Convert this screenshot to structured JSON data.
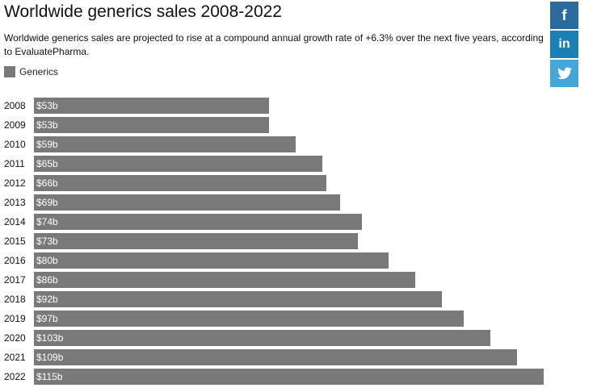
{
  "chart_data": {
    "type": "barh",
    "title": "Worldwide generics sales 2008-2022",
    "subtitle": "Worldwide generics sales are projected to rise at a compound annual growth rate of +6.3% over the next five years, according to EvaluatePharma.",
    "categories": [
      "2008",
      "2009",
      "2010",
      "2011",
      "2012",
      "2013",
      "2014",
      "2015",
      "2016",
      "2017",
      "2018",
      "2019",
      "2020",
      "2021",
      "2022"
    ],
    "series": [
      {
        "name": "Generics",
        "color": "#797979",
        "values": [
          53,
          53,
          59,
          65,
          66,
          69,
          74,
          73,
          80,
          86,
          92,
          97,
          103,
          109,
          115
        ],
        "value_labels": [
          "$53b",
          "$53b",
          "$59b",
          "$65b",
          "$66b",
          "$69b",
          "$74b",
          "$73b",
          "$80b",
          "$86b",
          "$92b",
          "$97b",
          "$103b",
          "$109b",
          "$115b"
        ]
      }
    ]
  },
  "social": {
    "facebook": "f",
    "linkedin": "in"
  }
}
